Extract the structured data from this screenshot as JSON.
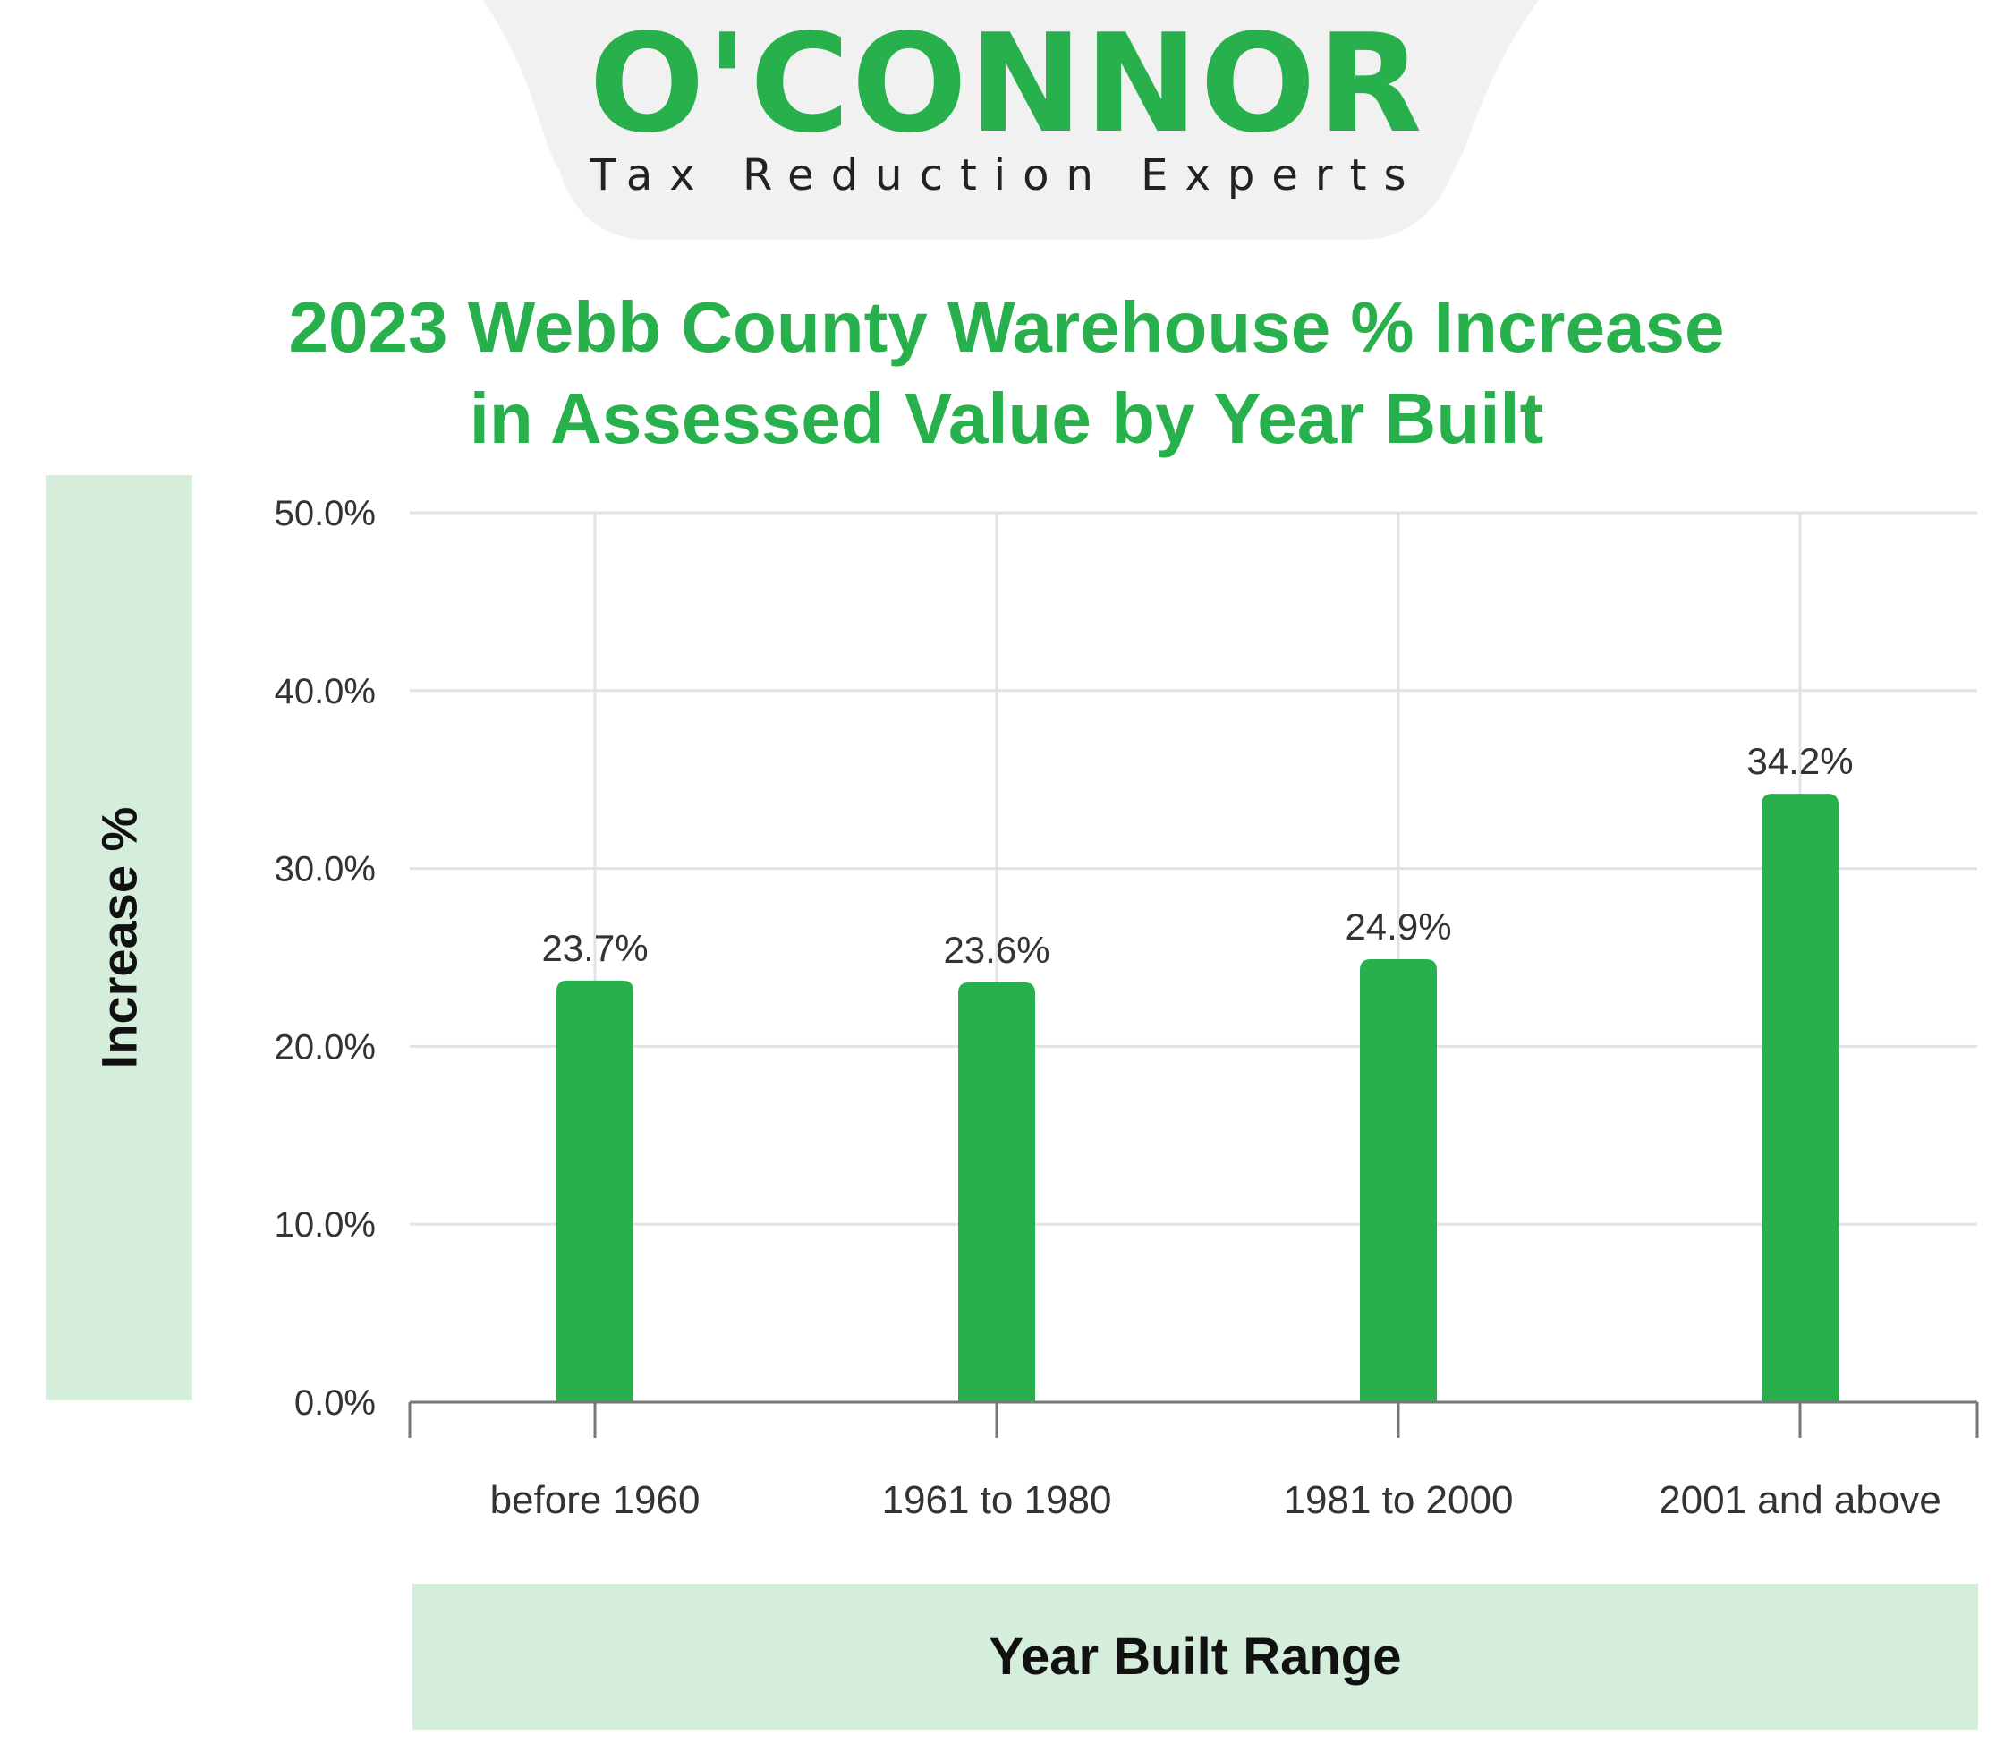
{
  "brand": {
    "name": "O'CONNOR",
    "tagline": "Tax Reduction Experts",
    "color": "#27b04b"
  },
  "chart_data": {
    "type": "bar",
    "title": "2023 Webb County Warehouse % Increase in Assessed Value by Year Built",
    "title_lines": [
      "2023 Webb County Warehouse % Increase",
      "in Assessed Value by Year Built"
    ],
    "xlabel": "Year Built Range",
    "ylabel": "Increase %",
    "categories": [
      "before 1960",
      "1961 to 1980",
      "1981 to 2000",
      "2001 and above"
    ],
    "values": [
      23.7,
      23.6,
      24.9,
      34.2
    ],
    "data_labels": [
      "23.7%",
      "23.6%",
      "24.9%",
      "34.2%"
    ],
    "ylim": [
      0,
      50
    ],
    "yticks": [
      0,
      10,
      20,
      30,
      40,
      50
    ],
    "ytick_labels": [
      "0.0%",
      "10.0%",
      "20.0%",
      "30.0%",
      "40.0%",
      "50.0%"
    ],
    "grid": true,
    "bar_color": "#27b04b",
    "label_box_color": "#d4eedb"
  }
}
